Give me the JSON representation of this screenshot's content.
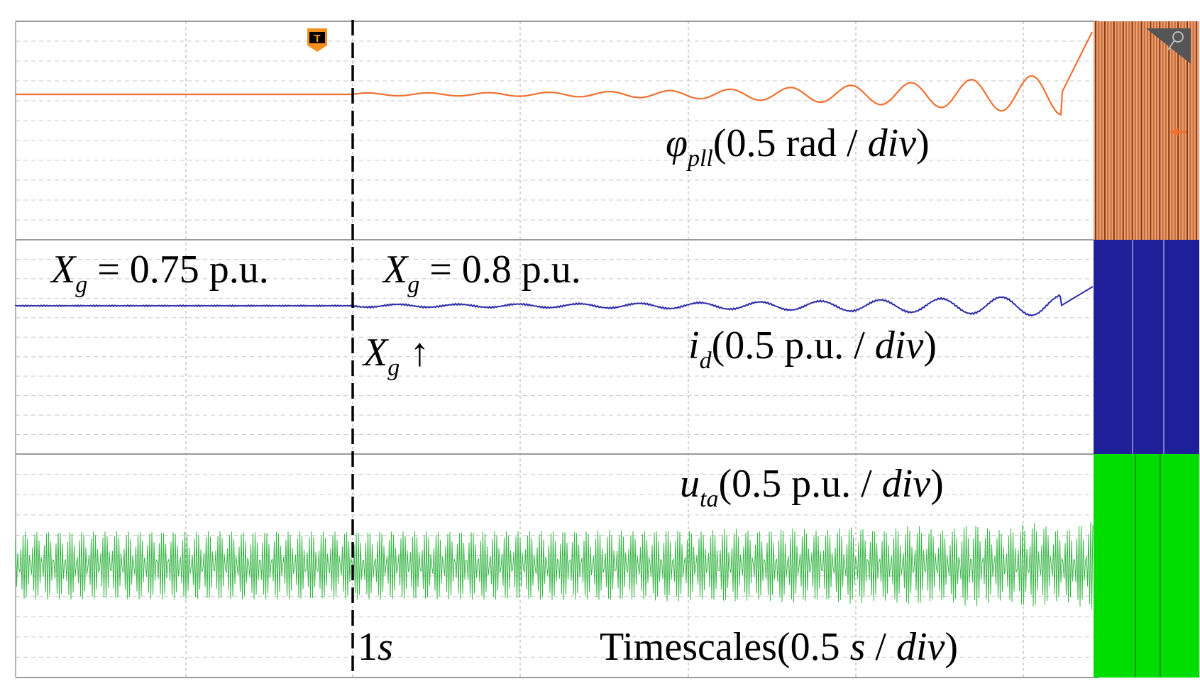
{
  "figure": {
    "panels": [
      {
        "signal": "φ",
        "subscript": "pll",
        "scale_text": "(0.5 rad / ",
        "scale_unit": "div",
        "close": ")",
        "color": "#f07030"
      },
      {
        "signal": "i",
        "subscript": "d",
        "scale_text": "(0.5 p.u. / ",
        "scale_unit": "div",
        "close": ")",
        "color": "#2b2ba8"
      },
      {
        "signal": "u",
        "subscript": "ta",
        "scale_text": "(0.5 p.u. / ",
        "scale_unit": "div",
        "close": ")",
        "color": "#3cb84a"
      }
    ],
    "annotations": {
      "xg_before": {
        "var": "X",
        "sub": "g",
        "text": " = 0.75 p.u."
      },
      "xg_after": {
        "var": "X",
        "sub": "g",
        "text": " = 0.8 p.u."
      },
      "xg_step": {
        "var": "X",
        "sub": "g",
        "arrow": "↑"
      },
      "event_time": {
        "value": "1",
        "unit": "s"
      },
      "timescale": {
        "prefix": "Timescales(0.5 ",
        "unit1": "s",
        "sep": " / ",
        "unit2": "div",
        "close": ")"
      }
    },
    "trigger_marker": {
      "label": "T",
      "color": "#f5901e"
    },
    "saturation_colors": [
      "#c86a30",
      "#1f1f99",
      "#00dd00"
    ],
    "icons": {
      "zoom": "magnifier-icon",
      "cursor_arrow": "channel-marker-icon"
    }
  },
  "chart_data": {
    "type": "line",
    "x_unit": "s",
    "time_per_div": 0.5,
    "event_time": 1,
    "series": [
      {
        "name": "φpll",
        "scale": "0.5 rad/div",
        "pre_event": "flat",
        "post_event": "growing oscillation, diverging at end"
      },
      {
        "name": "id",
        "scale": "0.5 p.u./div",
        "pre_event": "flat",
        "post_event": "growing oscillation, diverging at end"
      },
      {
        "name": "uta",
        "scale": "0.5 p.u./div",
        "pre_event": "steady AC",
        "post_event": "AC with growing amplitude"
      }
    ],
    "grid": true
  }
}
